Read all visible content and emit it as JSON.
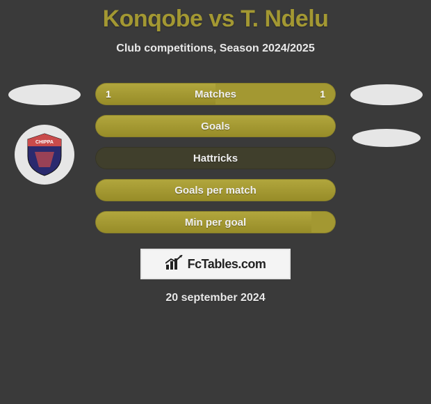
{
  "title": "Konqobe vs T. Ndelu",
  "subtitle": "Club competitions, Season 2024/2025",
  "logo_text": "FcTables.com",
  "date": "20 september 2024",
  "colors": {
    "bar_fill": "#a39832",
    "bar_empty": "#403f2c",
    "background": "#3a3a3a",
    "text": "#e8e8e8",
    "badge_primary": "#2a2a6e",
    "badge_accent": "#c94b4b"
  },
  "rows": [
    {
      "label": "Matches",
      "left_val": "1",
      "right_val": "1",
      "left_share": 50,
      "empty": false
    },
    {
      "label": "Goals",
      "left_val": "",
      "right_val": "",
      "left_share": 100,
      "empty": false
    },
    {
      "label": "Hattricks",
      "left_val": "",
      "right_val": "",
      "left_share": 0,
      "empty": true
    },
    {
      "label": "Goals per match",
      "left_val": "",
      "right_val": "",
      "left_share": 100,
      "empty": false
    },
    {
      "label": "Min per goal",
      "left_val": "",
      "right_val": "",
      "left_share": 90,
      "empty": false
    }
  ]
}
